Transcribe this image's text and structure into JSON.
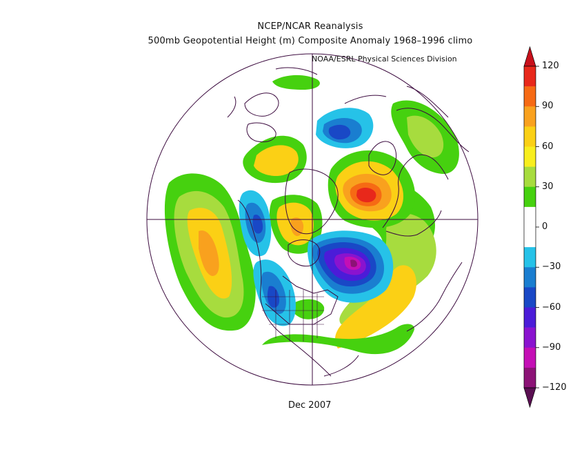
{
  "title_line1": "NCEP/NCAR Reanalysis",
  "title_line2": "500mb Geopotential Height (m) Composite Anomaly 1968–1996 climo",
  "credit": "NOAA/ESRL Physical Sciences Division",
  "date_label": "Dec 2007",
  "colorbar": {
    "labels": [
      "120",
      "90",
      "60",
      "30",
      "0",
      "−30",
      "−60",
      "−90",
      "−120"
    ],
    "bins": [
      {
        "range": "105 to 120",
        "color": "#e8281b"
      },
      {
        "range": "90 to 105",
        "color": "#f66a14"
      },
      {
        "range": "75 to 90",
        "color": "#f9a11e"
      },
      {
        "range": "60 to 75",
        "color": "#fbd015"
      },
      {
        "range": "45 to 60",
        "color": "#f8ee1e"
      },
      {
        "range": "30 to 45",
        "color": "#a7dc3e"
      },
      {
        "range": "15 to 30",
        "color": "#46d10f"
      },
      {
        "range": "0 to 15",
        "color": "#ffffff"
      },
      {
        "range": "-15 to 0",
        "color": "#ffffff"
      },
      {
        "range": "-30 to -15",
        "color": "#26c2e8"
      },
      {
        "range": "-45 to -30",
        "color": "#1a7ed0"
      },
      {
        "range": "-60 to -45",
        "color": "#1948c6"
      },
      {
        "range": "-75 to -60",
        "color": "#4b1cd8"
      },
      {
        "range": "-90 to -75",
        "color": "#8a13cf"
      },
      {
        "range": "-105 to -90",
        "color": "#c40fb5"
      },
      {
        "range": "-120 to -105",
        "color": "#8c1276"
      }
    ],
    "top_triangle_color": "#c8101b",
    "bottom_triangle_color": "#5a0f52"
  },
  "line_color": "#3b0a3e"
}
